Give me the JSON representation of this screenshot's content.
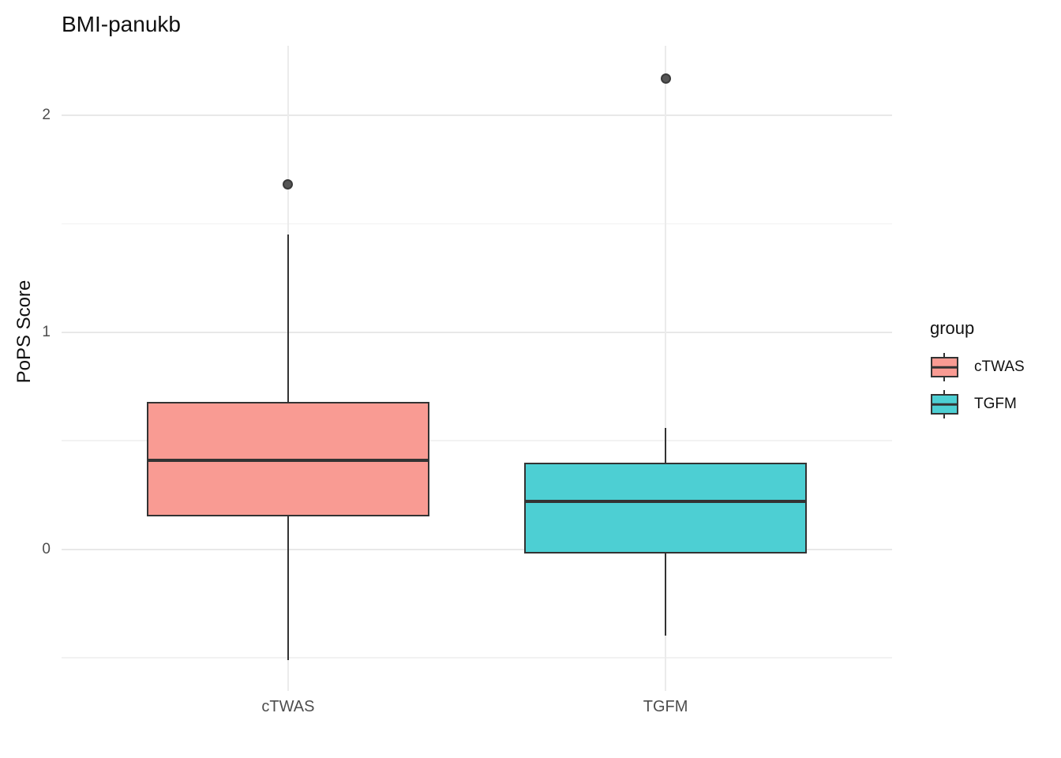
{
  "title": "BMI-panukb",
  "y_axis": {
    "label": "PoPS Score",
    "tick_labels": [
      "0",
      "1",
      "2"
    ]
  },
  "x_axis": {
    "tick_labels": [
      "cTWAS",
      "TGFM"
    ]
  },
  "legend": {
    "title": "group",
    "entries": [
      {
        "label": "cTWAS",
        "color": "#F99B93"
      },
      {
        "label": "TGFM",
        "color": "#4DCFD3"
      }
    ]
  },
  "colors": {
    "background": "#FFFFFF",
    "box_stroke": "#333333",
    "grid_major": "#E8E8E8",
    "grid_minor": "#F2F2F2",
    "tick_label": "#4D4D4D",
    "outlier": "#565656"
  },
  "chart_data": {
    "type": "boxplot",
    "title": "BMI-panukb",
    "xlabel": "",
    "ylabel": "PoPS Score",
    "categories": [
      "cTWAS",
      "TGFM"
    ],
    "ylim": [
      -0.653,
      2.32
    ],
    "yticks_major": [
      0,
      1,
      2
    ],
    "yticks_minor": [
      -0.5,
      0.5,
      1.5
    ],
    "grid": true,
    "legend_position": "right",
    "legend_title": "group",
    "series": [
      {
        "name": "cTWAS",
        "fill": "#F99B93",
        "whisker_low": -0.51,
        "q1": 0.15,
        "median": 0.41,
        "q3": 0.68,
        "whisker_high": 1.45,
        "outliers": [
          1.68
        ]
      },
      {
        "name": "TGFM",
        "fill": "#4DCFD3",
        "whisker_low": -0.4,
        "q1": -0.02,
        "median": 0.22,
        "q3": 0.4,
        "whisker_high": 0.56,
        "outliers": [
          2.17
        ]
      }
    ]
  }
}
